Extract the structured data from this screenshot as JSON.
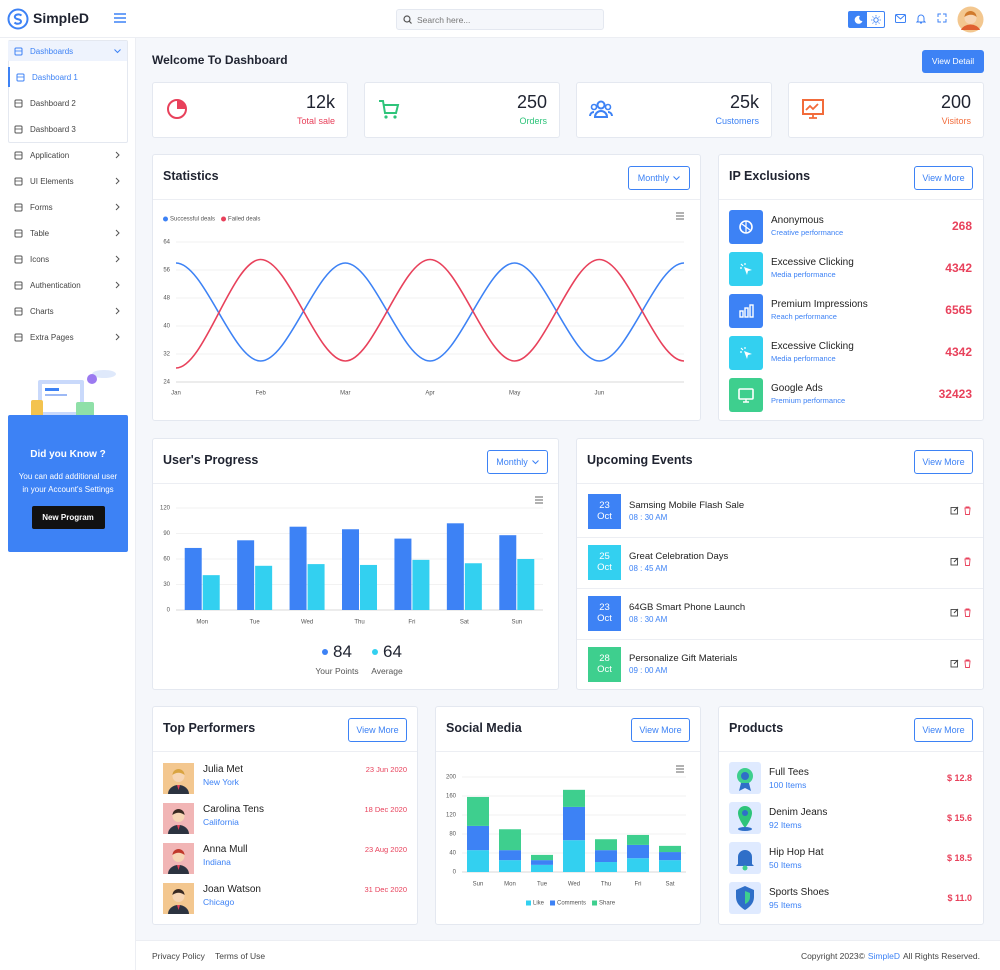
{
  "brand": "SimpleD",
  "search_placeholder": "Search here...",
  "sidebar": {
    "menu": [
      {
        "label": "Dashboards",
        "children": [
          "Dashboard 1",
          "Dashboard 2",
          "Dashboard 3"
        ]
      },
      {
        "label": "Application"
      },
      {
        "label": "UI Elements"
      },
      {
        "label": "Forms"
      },
      {
        "label": "Table"
      },
      {
        "label": "Icons"
      },
      {
        "label": "Authentication"
      },
      {
        "label": "Charts"
      },
      {
        "label": "Extra Pages"
      }
    ]
  },
  "promo": {
    "title": "Did you Know ?",
    "text": "You can add additional user in your Account's Settings",
    "button": "New Program"
  },
  "page": {
    "title": "Welcome To Dashboard",
    "button": "View Detail"
  },
  "stats": [
    {
      "value": "12k",
      "label": "Total sale",
      "color": "#e8415b"
    },
    {
      "value": 250,
      "label": "Orders",
      "color": "#2ec47a"
    },
    {
      "value": "25k",
      "label": "Customers",
      "color": "#3d82f5"
    },
    {
      "value": 200,
      "label": "Visitors",
      "color": "#f26b3a"
    }
  ],
  "controls": {
    "statistics": "Monthly",
    "progress": "Monthly",
    "social": "View More"
  },
  "chart_data": [
    {
      "type": "line",
      "title": "Statistics",
      "categories": [
        "Jan",
        "Feb",
        "Mar",
        "Apr",
        "May",
        "Jun",
        null
      ],
      "ylim": [
        24,
        64
      ],
      "yticks": [
        24,
        32,
        40,
        48,
        56,
        64
      ],
      "grid": true,
      "legend": "top-left",
      "series": [
        {
          "name": "Successful deals",
          "color": "#3d82f5",
          "values": [
            58,
            30,
            58,
            30,
            58,
            30,
            58
          ]
        },
        {
          "name": "Failed deals",
          "color": "#e8415b",
          "values": [
            28,
            59,
            30,
            59,
            30,
            59,
            30
          ]
        }
      ]
    },
    {
      "type": "bar",
      "title": "User's Progress",
      "categories": [
        "Mon",
        "Tue",
        "Wed",
        "Thu",
        "Fri",
        "Sat",
        "Sun"
      ],
      "ylim": [
        0,
        120
      ],
      "yticks": [
        0,
        30,
        60,
        90,
        120
      ],
      "grid": true,
      "series": [
        {
          "color": "#3d82f5",
          "values": [
            73,
            82,
            98,
            95,
            84,
            102,
            88
          ]
        },
        {
          "color": "#33d0f0",
          "values": [
            41,
            52,
            54,
            53,
            59,
            55,
            60
          ]
        }
      ]
    },
    {
      "type": "stacked_bar",
      "title": "Social Media",
      "categories": [
        "Sun",
        "Mon",
        "Tue",
        "Wed",
        "Thu",
        "Fri",
        "Sat"
      ],
      "ylim": [
        0,
        200
      ],
      "yticks": [
        0,
        40,
        80,
        120,
        160,
        200
      ],
      "grid": true,
      "legend": "bottom",
      "series": [
        {
          "name": "Like",
          "color": "#33d0f0",
          "values": [
            46,
            25,
            15,
            67,
            21,
            29,
            25
          ]
        },
        {
          "name": "Comments",
          "color": "#3d82f5",
          "values": [
            51,
            21,
            10,
            70,
            25,
            28,
            17
          ]
        },
        {
          "name": "Share",
          "color": "#3ecf8e",
          "values": [
            61,
            44,
            11,
            36,
            23,
            21,
            13
          ]
        }
      ]
    }
  ],
  "progress_summary": [
    {
      "value": 84,
      "label": "Your Points",
      "color": "#3d82f5"
    },
    {
      "value": 64,
      "label": "Average",
      "color": "#33d0f0"
    }
  ],
  "ip_exclusions": {
    "title": "IP Exclusions",
    "button": "View More",
    "items": [
      {
        "name": "Anonymous",
        "sub": "Creative performance",
        "value": 268,
        "color": "#3d82f5"
      },
      {
        "name": "Excessive Clicking",
        "sub": "Media performance",
        "value": 4342,
        "color": "#33d0f0"
      },
      {
        "name": "Premium Impressions",
        "sub": "Reach performance",
        "value": 6565,
        "color": "#3d82f5"
      },
      {
        "name": "Excessive Clicking",
        "sub": "Media performance",
        "value": 4342,
        "color": "#33d0f0"
      },
      {
        "name": "Google Ads",
        "sub": "Premium performance",
        "value": 32423,
        "color": "#3ecf8e"
      }
    ]
  },
  "events": {
    "title": "Upcoming Events",
    "button": "View More",
    "items": [
      {
        "day": 23,
        "month": "Oct",
        "title": "Samsing Mobile Flash Sale",
        "time": "08 : 30 AM",
        "color": "#3d82f5"
      },
      {
        "day": 25,
        "month": "Oct",
        "title": "Great Celebration Days",
        "time": "08 : 45 AM",
        "color": "#33d0f0"
      },
      {
        "day": 23,
        "month": "Oct",
        "title": "64GB Smart Phone Launch",
        "time": "08 : 30 AM",
        "color": "#3d82f5"
      },
      {
        "day": 28,
        "month": "Oct",
        "title": "Personalize Gift Materials",
        "time": "09 : 00 AM",
        "color": "#3ecf8e"
      }
    ]
  },
  "performers": {
    "title": "Top Performers",
    "button": "View More",
    "items": [
      {
        "name": "Julia Met",
        "location": "New York",
        "date": "23 Jun 2020"
      },
      {
        "name": "Carolina Tens",
        "location": "California",
        "date": "18 Dec 2020"
      },
      {
        "name": "Anna Mull",
        "location": "Indiana",
        "date": "23 Aug 2020"
      },
      {
        "name": "Joan Watson",
        "location": "Chicago",
        "date": "31 Dec 2020"
      }
    ]
  },
  "products": {
    "title": "Products",
    "button": "View More",
    "items": [
      {
        "name": "Full Tees",
        "count": "100 Items",
        "price": "$ 12.8"
      },
      {
        "name": "Denim Jeans",
        "count": "92 Items",
        "price": "$ 15.6"
      },
      {
        "name": "Hip Hop Hat",
        "count": "50 Items",
        "price": "$ 18.5"
      },
      {
        "name": "Sports Shoes",
        "count": "95 Items",
        "price": "$ 11.0"
      }
    ]
  },
  "footer": {
    "links": [
      "Privacy Policy",
      "Terms of Use"
    ],
    "copyright": "Copyright 2023©",
    "brand": "SimpleD",
    "rights": "All Rights Reserved."
  }
}
